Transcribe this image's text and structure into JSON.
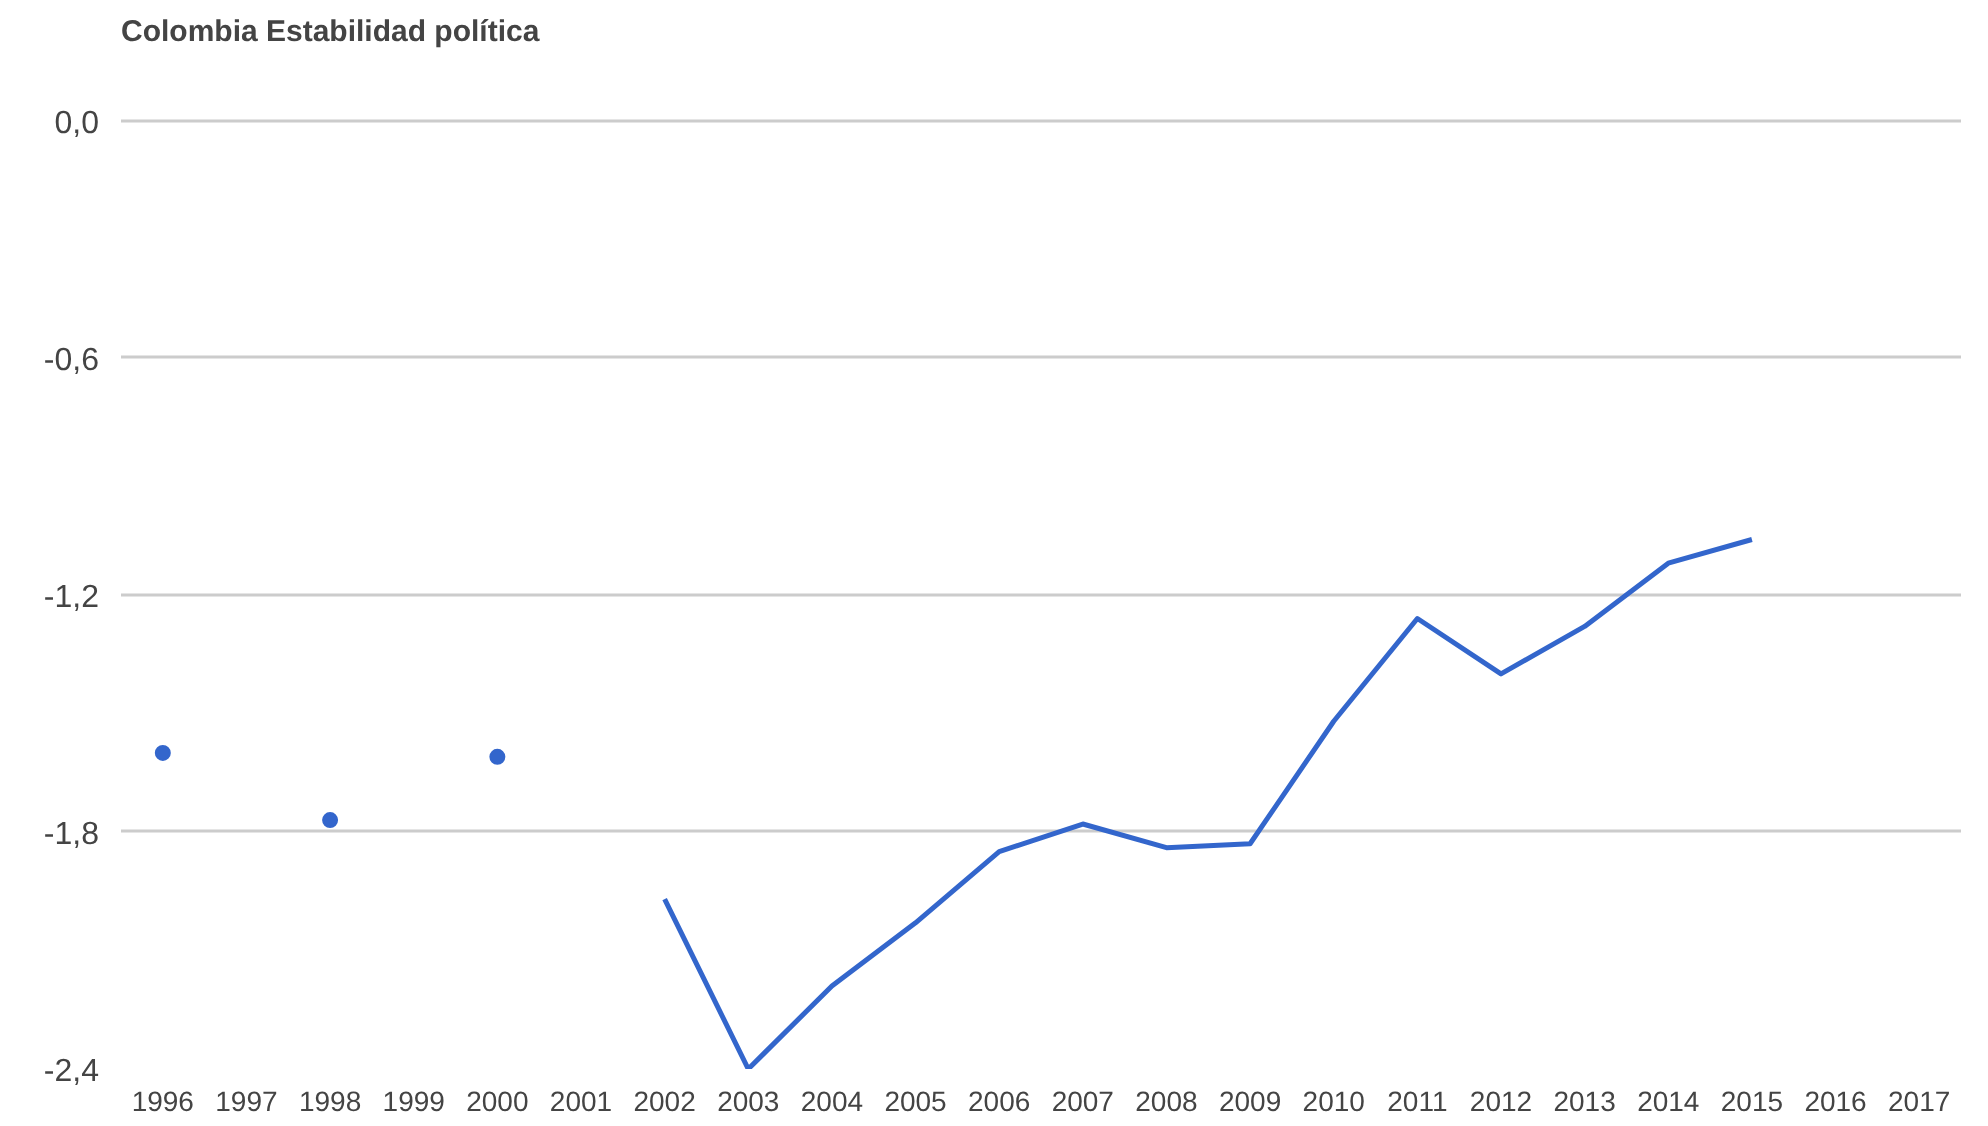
{
  "chart_data": {
    "type": "line",
    "title": "Colombia Estabilidad política",
    "x": [
      1996,
      1997,
      1998,
      1999,
      2000,
      2001,
      2002,
      2003,
      2004,
      2005,
      2006,
      2007,
      2008,
      2009,
      2010,
      2011,
      2012,
      2013,
      2014,
      2015
    ],
    "series": [
      {
        "color": "#3366cc",
        "values": [
          -1.6,
          null,
          -1.77,
          null,
          -1.61,
          null,
          -1.97,
          -2.4,
          -2.19,
          -2.03,
          -1.85,
          -1.78,
          -1.84,
          -1.83,
          -1.52,
          -1.26,
          -1.4,
          -1.28,
          -1.12,
          -1.06
        ]
      }
    ],
    "xlim": [
      1995.5,
      2017.5
    ],
    "xticks": [
      1996,
      1997,
      1998,
      1999,
      2000,
      2001,
      2002,
      2003,
      2004,
      2005,
      2006,
      2007,
      2008,
      2009,
      2010,
      2011,
      2012,
      2013,
      2014,
      2015,
      2016,
      2017
    ],
    "ylim": [
      -2.4,
      0.0
    ],
    "yticks": [
      {
        "value": 0,
        "label": "0,0"
      },
      {
        "value": -0.6,
        "label": "-0,6"
      },
      {
        "value": -1.2,
        "label": "-1,2"
      },
      {
        "value": -1.8,
        "label": "-1,8"
      },
      {
        "value": -2.4,
        "label": "-2,4"
      }
    ],
    "grid": "y"
  }
}
